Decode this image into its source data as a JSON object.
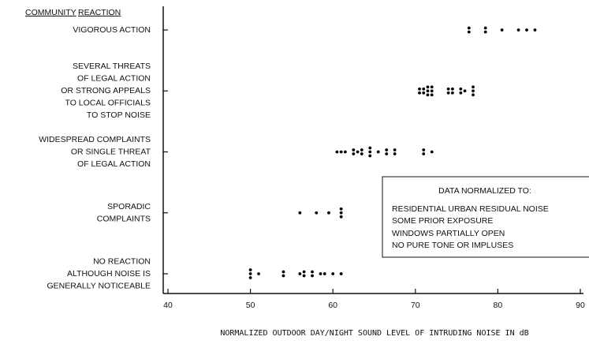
{
  "chart_data": {
    "type": "scatter",
    "y_axis_title": [
      "COMMUNITY",
      "REACTION"
    ],
    "categories": [
      [
        "NO REACTION",
        "ALTHOUGH NOISE IS",
        "GENERALLY NOTICEABLE"
      ],
      [
        "SPORADIC",
        "COMPLAINTS"
      ],
      [
        "WIDESPREAD COMPLAINTS",
        "OR SINGLE THREAT",
        "OF LEGAL ACTION"
      ],
      [
        "SEVERAL THREATS",
        "OF LEGAL ACTION",
        "OR STRONG APPEALS",
        "TO LOCAL OFFICIALS",
        "TO STOP NOISE"
      ],
      [
        "VIGOROUS ACTION"
      ]
    ],
    "series": [
      {
        "color": "#000000",
        "x": [
          50,
          50,
          50,
          51,
          54,
          54,
          56,
          56.5,
          56.5,
          57.5,
          57.5,
          58.5,
          59,
          60,
          61
        ]
      },
      {
        "color": "#000000",
        "x": [
          56,
          58,
          59.5,
          61,
          61,
          61
        ]
      },
      {
        "color": "#000000",
        "x": [
          60.5,
          61,
          61.5,
          62.5,
          62.5,
          63,
          63.5,
          63.5,
          64.5,
          64.5,
          64.5,
          65.5,
          66.5,
          66.5,
          67.5,
          67.5,
          71,
          71,
          72
        ]
      },
      {
        "color": "#000000",
        "x": [
          70.5,
          70.5,
          71,
          71,
          71.5,
          71.5,
          71.5,
          72,
          72,
          72,
          74,
          74,
          74.5,
          74.5,
          75.5,
          75.5,
          76,
          77,
          77,
          77
        ]
      },
      {
        "color": "#000000",
        "x": [
          76.5,
          76.5,
          78.5,
          78.5,
          80.5,
          82.5,
          83.5,
          84.5
        ]
      }
    ],
    "xlim": [
      40,
      90
    ],
    "xticks": [
      40,
      50,
      60,
      70,
      80,
      90
    ],
    "x_label": "NORMALIZED OUTDOOR DAY/NIGHT SOUND LEVEL OF INTRUDING NOISE IN dB",
    "annotation": {
      "title": "DATA NORMALIZED TO:",
      "lines": [
        "RESIDENTIAL URBAN RESIDUAL NOISE",
        "SOME PRIOR EXPOSURE",
        "WINDOWS PARTIALLY OPEN",
        "NO PURE TONE OR IMPLUSES"
      ]
    }
  }
}
